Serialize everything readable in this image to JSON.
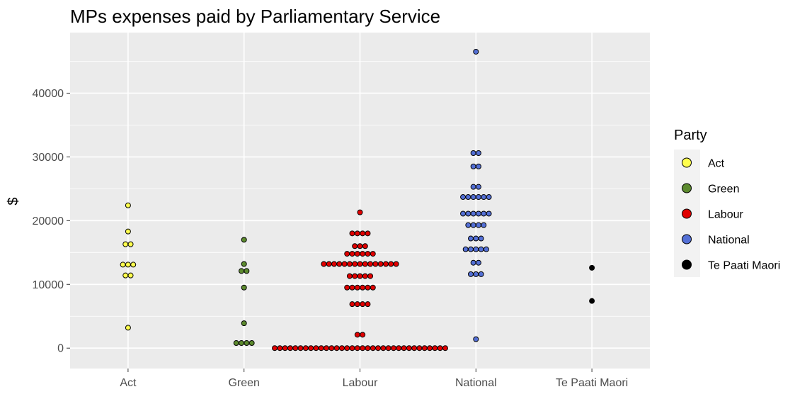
{
  "chart_data": {
    "type": "scatter",
    "title": "MPs expenses paid by Parliamentary Service",
    "xlabel": "",
    "ylabel": "$",
    "categories": [
      "Act",
      "Green",
      "Labour",
      "National",
      "Te Paati Maori"
    ],
    "ylim": [
      -3200,
      49500
    ],
    "yticks": [
      0,
      10000,
      20000,
      30000,
      40000
    ],
    "grid": true,
    "legend": {
      "title": "Party",
      "placement": "right",
      "entries": [
        "Act",
        "Green",
        "Labour",
        "National",
        "Te Paati Maori"
      ]
    },
    "colors": {
      "Act": "#ffff4d",
      "Green": "#5c8a2e",
      "Labour": "#e00000",
      "National": "#5470d6",
      "Te Paati Maori": "#000000",
      "panel": "#ebebeb",
      "gridline": "#ffffff"
    },
    "series": [
      {
        "name": "Act",
        "values": [
          22400,
          18300,
          16300,
          16300,
          13100,
          13100,
          13100,
          11400,
          11400,
          3200
        ]
      },
      {
        "name": "Green",
        "values": [
          17000,
          13200,
          12100,
          12100,
          9500,
          3900,
          800,
          800,
          800,
          800
        ]
      },
      {
        "name": "Labour",
        "values": [
          21300,
          18000,
          18000,
          18000,
          18000,
          16000,
          16000,
          16000,
          14800,
          14800,
          14800,
          14800,
          14800,
          14800,
          13200,
          13200,
          13200,
          13200,
          13200,
          13200,
          13200,
          13200,
          13200,
          13200,
          13200,
          13200,
          13200,
          13200,
          13200,
          11300,
          11300,
          11300,
          11300,
          11300,
          9500,
          9500,
          9500,
          9500,
          9500,
          9500,
          6900,
          6900,
          6900,
          6900,
          2100,
          2100,
          0,
          0,
          0,
          0,
          0,
          0,
          0,
          0,
          0,
          0,
          0,
          0,
          0,
          0,
          0,
          0,
          0,
          0,
          0,
          0,
          0,
          0,
          0,
          0,
          0,
          0,
          0,
          0,
          0,
          0,
          0,
          0,
          0,
          0
        ]
      },
      {
        "name": "National",
        "values": [
          46500,
          30600,
          30600,
          28500,
          28500,
          25300,
          25300,
          23700,
          23700,
          23700,
          23700,
          23700,
          23700,
          21100,
          21100,
          21100,
          21100,
          21100,
          21100,
          19300,
          19300,
          19300,
          19300,
          17200,
          17200,
          17200,
          15500,
          15500,
          15500,
          15500,
          15500,
          13400,
          13400,
          11600,
          11600,
          11600,
          1400
        ]
      },
      {
        "name": "Te Paati Maori",
        "values": [
          12600,
          7400
        ]
      }
    ]
  }
}
